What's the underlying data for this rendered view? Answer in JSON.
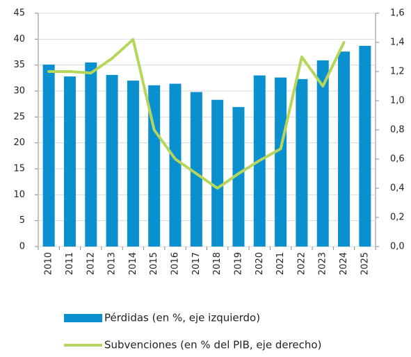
{
  "chart_data": {
    "type": "bar",
    "categories": [
      "2010",
      "2011",
      "2012",
      "2013",
      "2014",
      "2015",
      "2016",
      "2017",
      "2018",
      "2019",
      "2020",
      "2021",
      "2022",
      "2023",
      "2024",
      "2025"
    ],
    "series": [
      {
        "name": "Pérdidas (en %, eje izquierdo)",
        "type": "bar",
        "color": "#0a8fcf",
        "values": [
          35.1,
          32.8,
          35.5,
          33.1,
          32.0,
          31.1,
          31.4,
          29.8,
          28.3,
          26.9,
          33.0,
          32.6,
          32.3,
          35.9,
          37.6,
          38.7
        ]
      },
      {
        "name": "Subvenciones (en % del PIB, eje derecho)",
        "type": "line",
        "axis": "y2",
        "color": "#b5d65a",
        "values": [
          1.2,
          1.2,
          1.19,
          1.29,
          1.42,
          0.8,
          0.6,
          0.5,
          0.4,
          0.5,
          0.59,
          0.67,
          1.3,
          1.1,
          1.4,
          null
        ]
      }
    ],
    "ylim": [
      0,
      45
    ],
    "yticks": [
      0,
      5,
      10,
      15,
      20,
      25,
      30,
      35,
      40,
      45
    ],
    "y2lim": [
      0,
      1.6
    ],
    "y2ticks": [
      {
        "value": 0,
        "label": "0,0"
      },
      {
        "value": 0.2,
        "label": "0,2"
      },
      {
        "value": 0.4,
        "label": "0,4"
      },
      {
        "value": 0.6,
        "label": "0,6"
      },
      {
        "value": 0.8,
        "label": "0,8"
      },
      {
        "value": 1.0,
        "label": "1,0"
      },
      {
        "value": 1.2,
        "label": "1,2"
      },
      {
        "value": 1.4,
        "label": "1,4"
      },
      {
        "value": 1.6,
        "label": "1,6"
      }
    ],
    "grid": true
  }
}
